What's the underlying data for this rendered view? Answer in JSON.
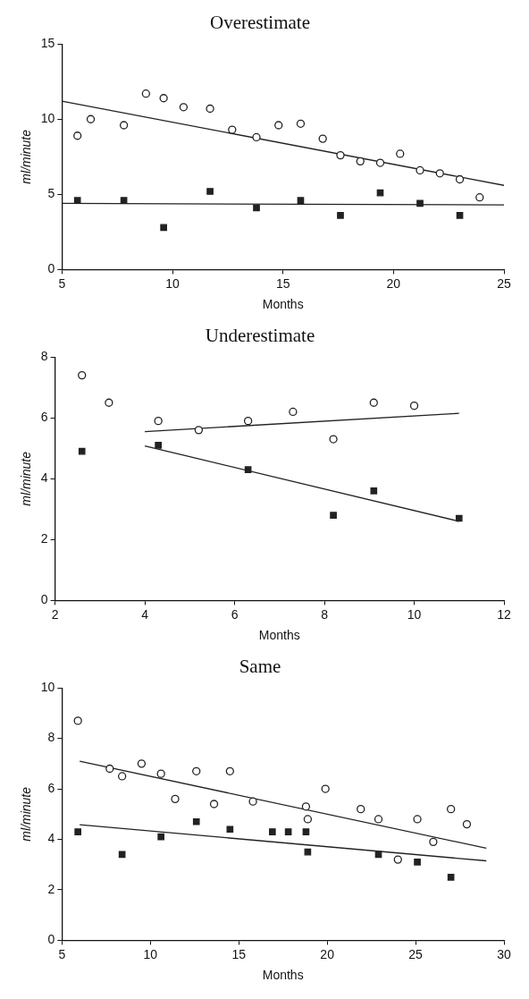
{
  "chart_data": [
    {
      "type": "scatter",
      "title": "Overestimate",
      "xlabel": "Months",
      "ylabel": "ml/minute",
      "xlim": [
        5,
        25
      ],
      "xticks": [
        5,
        10,
        15,
        20,
        25
      ],
      "ylim": [
        0,
        15
      ],
      "yticks": [
        0,
        5,
        10,
        15
      ],
      "series": [
        {
          "type": "scatter",
          "marker": "circle",
          "color": "#222222",
          "x": [
            5.7,
            6.3,
            7.8,
            8.8,
            9.6,
            10.5,
            11.7,
            12.7,
            13.8,
            14.8,
            15.8,
            16.8,
            17.6,
            18.5,
            19.4,
            20.3,
            21.2,
            22.1,
            23,
            23.9
          ],
          "values": [
            8.9,
            10,
            9.6,
            11.7,
            11.4,
            10.8,
            10.7,
            9.3,
            8.8,
            9.6,
            9.7,
            8.7,
            7.6,
            7.2,
            7.1,
            7.7,
            6.6,
            6.4,
            6,
            4.8
          ]
        },
        {
          "type": "scatter",
          "marker": "square",
          "color": "#222222",
          "x": [
            5.7,
            7.8,
            9.6,
            11.7,
            13.8,
            15.8,
            17.6,
            19.4,
            21.2,
            23
          ],
          "values": [
            4.6,
            4.6,
            2.8,
            5.2,
            4.1,
            4.6,
            3.6,
            5.1,
            4.4,
            3.6
          ]
        },
        {
          "type": "line",
          "marker": "none",
          "color": "#222222",
          "x": [
            5,
            25
          ],
          "values": [
            11.2,
            5.6
          ]
        },
        {
          "type": "line",
          "marker": "none",
          "color": "#222222",
          "x": [
            5,
            25
          ],
          "values": [
            4.4,
            4.3
          ]
        }
      ]
    },
    {
      "type": "scatter",
      "title": "Underestimate",
      "xlabel": "Months",
      "ylabel": "ml/minute",
      "xlim": [
        2,
        12
      ],
      "xticks": [
        2,
        4,
        6,
        8,
        10,
        12
      ],
      "ylim": [
        0,
        8
      ],
      "yticks": [
        0,
        2,
        4,
        6,
        8
      ],
      "series": [
        {
          "type": "scatter",
          "marker": "circle",
          "color": "#222222",
          "x": [
            2.6,
            3.2,
            4.3,
            5.2,
            6.3,
            7.3,
            8.2,
            9.1,
            10
          ],
          "values": [
            7.4,
            6.5,
            5.9,
            5.6,
            5.9,
            6.2,
            5.3,
            6.5,
            6.4
          ]
        },
        {
          "type": "scatter",
          "marker": "square",
          "color": "#222222",
          "x": [
            2.6,
            4.3,
            6.3,
            8.2,
            9.1,
            11
          ],
          "values": [
            4.9,
            5.1,
            4.3,
            2.8,
            3.6,
            2.7
          ]
        },
        {
          "type": "line",
          "marker": "none",
          "color": "#222222",
          "x": [
            4,
            11
          ],
          "values": [
            5.55,
            6.15
          ]
        },
        {
          "type": "line",
          "marker": "none",
          "color": "#222222",
          "x": [
            4,
            11
          ],
          "values": [
            5.08,
            2.6
          ]
        }
      ]
    },
    {
      "type": "scatter",
      "title": "Same",
      "xlabel": "Months",
      "ylabel": "ml/minute",
      "xlim": [
        5,
        30
      ],
      "xticks": [
        5,
        10,
        15,
        20,
        25,
        30
      ],
      "ylim": [
        0,
        10
      ],
      "yticks": [
        0,
        2,
        4,
        6,
        8,
        10
      ],
      "series": [
        {
          "type": "scatter",
          "marker": "circle",
          "color": "#222222",
          "x": [
            5.9,
            7.7,
            8.4,
            9.5,
            10.6,
            11.4,
            12.6,
            13.6,
            14.5,
            15.8,
            18.8,
            18.9,
            19.9,
            21.9,
            22.9,
            24,
            25.1,
            26,
            27,
            27.9
          ],
          "values": [
            8.7,
            6.8,
            6.5,
            7,
            6.6,
            5.6,
            6.7,
            5.4,
            6.7,
            5.5,
            5.3,
            4.8,
            6,
            5.2,
            4.8,
            3.2,
            4.8,
            3.9,
            5.2,
            4.6
          ]
        },
        {
          "type": "scatter",
          "marker": "square",
          "color": "#222222",
          "x": [
            5.9,
            8.4,
            10.6,
            12.6,
            14.5,
            16.9,
            17.8,
            18.8,
            18.9,
            22.9,
            25.1,
            27
          ],
          "values": [
            4.3,
            3.4,
            4.1,
            4.7,
            4.4,
            4.3,
            4.3,
            4.3,
            3.5,
            3.4,
            3.1,
            2.5
          ]
        },
        {
          "type": "line",
          "marker": "none",
          "color": "#222222",
          "x": [
            6,
            29
          ],
          "values": [
            7.1,
            3.65
          ]
        },
        {
          "type": "line",
          "marker": "none",
          "color": "#222222",
          "x": [
            6,
            29
          ],
          "values": [
            4.58,
            3.15
          ]
        }
      ]
    }
  ]
}
